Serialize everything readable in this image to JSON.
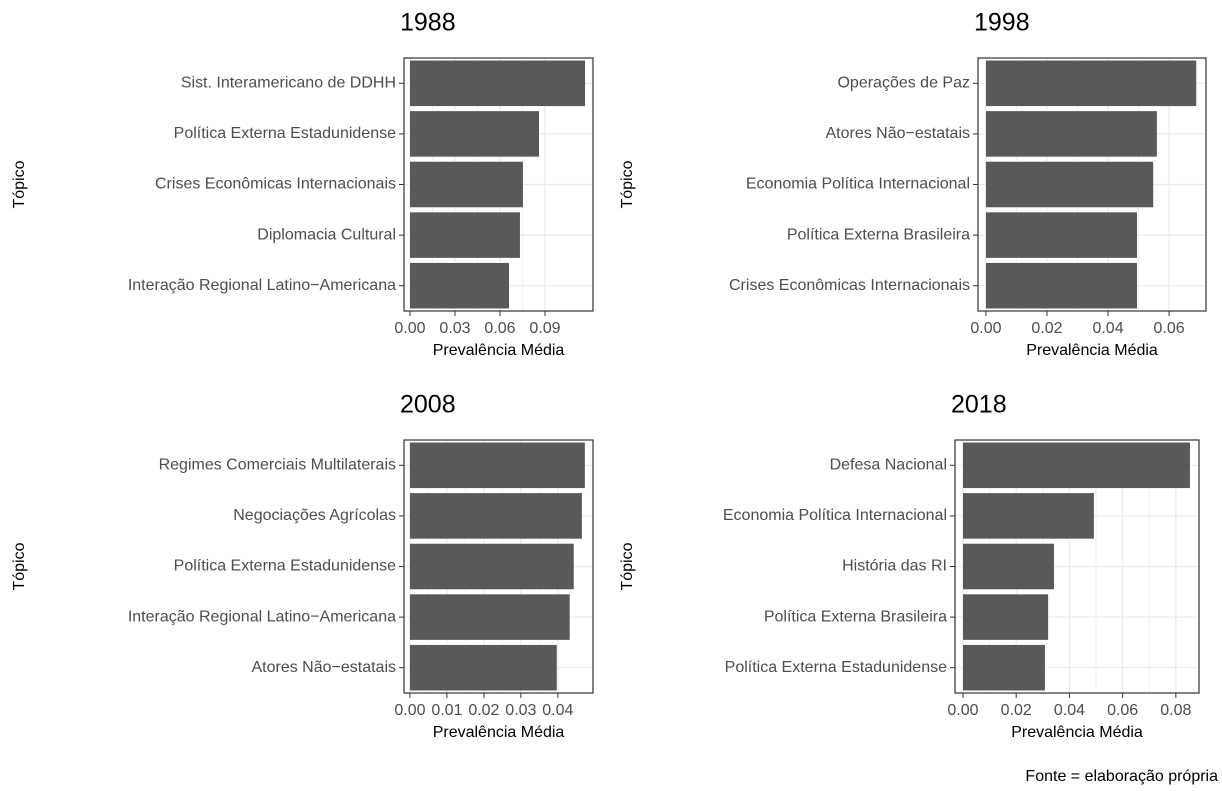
{
  "chart_data": [
    {
      "type": "bar",
      "orientation": "horizontal",
      "title": "1988",
      "xlabel": "Prevalência Média",
      "ylabel": "Tópico",
      "categories": [
        "Sist. Interamericano de DDHH",
        "Política Externa Estadunidense",
        "Crises Econômicas Internacionais",
        "Diplomacia Cultural",
        "Interação Regional Latino−Americana"
      ],
      "values": [
        0.1167,
        0.086,
        0.0753,
        0.0733,
        0.066
      ],
      "color": "#595959",
      "xlim": [
        -0.004,
        0.122
      ],
      "xticks": [
        {
          "value": 0,
          "label": "0.00"
        },
        {
          "value": 0.03,
          "label": "0.03"
        },
        {
          "value": 0.06,
          "label": "0.06"
        },
        {
          "value": 0.09,
          "label": "0.09"
        }
      ],
      "grid": true
    },
    {
      "type": "bar",
      "orientation": "horizontal",
      "title": "1998",
      "xlabel": "Prevalência Média",
      "ylabel": "Tópico",
      "categories": [
        "Operações de Paz",
        "Atores Não−estatais",
        "Economia Política Internacional",
        "Política Externa Brasileira",
        "Crises Econômicas Internacionais"
      ],
      "values": [
        0.0689,
        0.056,
        0.0548,
        0.0495,
        0.0495
      ],
      "color": "#595959",
      "xlim": [
        -0.0026,
        0.0721
      ],
      "xticks": [
        {
          "value": 0,
          "label": "0.00"
        },
        0.02,
        0.04,
        0.06
      ],
      "grid": true
    },
    {
      "type": "bar",
      "orientation": "horizontal",
      "title": "2008",
      "xlabel": "Prevalência Média",
      "ylabel": "Tópico",
      "categories": [
        "Regimes Comerciais Multilaterais",
        "Negociações Agrícolas",
        "Política Externa Estadunidense",
        "Interação Regional Latino−Americana",
        "Atores Não−estatais"
      ],
      "values": [
        0.0473,
        0.0465,
        0.0443,
        0.0432,
        0.0397
      ],
      "color": "#595959",
      "xlim": [
        -0.0016,
        0.0495
      ],
      "xticks": [
        {
          "value": 0,
          "label": "0.00"
        },
        0.01,
        0.02,
        0.03,
        0.04
      ],
      "grid": true
    },
    {
      "type": "bar",
      "orientation": "horizontal",
      "title": "2018",
      "xlabel": "Prevalência Média",
      "ylabel": "Tópico",
      "categories": [
        "Defesa Nacional",
        "Economia Política Internacional",
        "História das RI",
        "Política Externa Brasileira",
        "Política Externa Estadunidense"
      ],
      "values": [
        0.0853,
        0.0492,
        0.0342,
        0.032,
        0.0308
      ],
      "color": "#595959",
      "xlim": [
        -0.003,
        0.0887
      ],
      "xticks": [
        {
          "value": 0,
          "label": "0.00"
        },
        0.02,
        0.04,
        0.06,
        0.08
      ],
      "grid": true
    }
  ],
  "caption": "Fonte = elaboração própria"
}
